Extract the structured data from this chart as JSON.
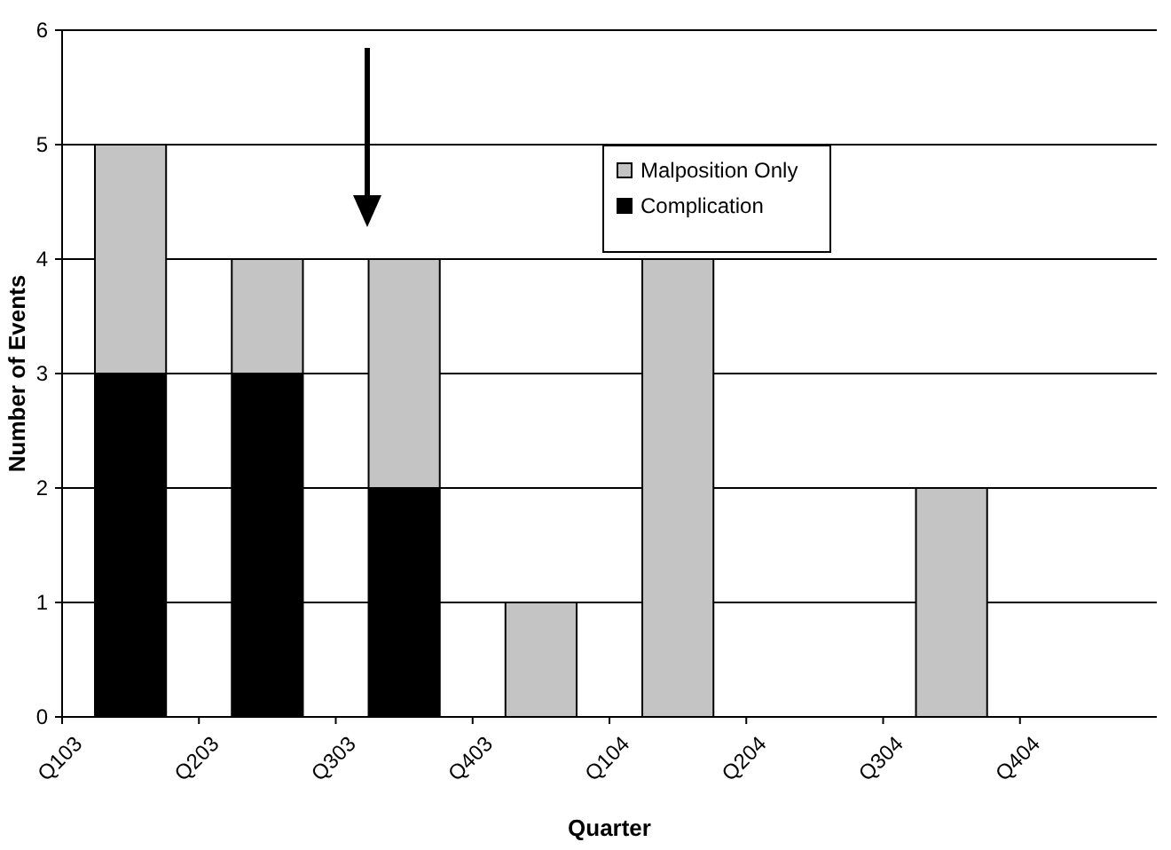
{
  "chart_data": {
    "type": "bar",
    "stacked": true,
    "xlabel": "Quarter",
    "ylabel": "Number of Events",
    "categories": [
      "Q103",
      "Q203",
      "Q303",
      "Q403",
      "Q104",
      "Q204",
      "Q304",
      "Q404"
    ],
    "series": [
      {
        "name": "Complication",
        "color": "#000000",
        "values": [
          3,
          3,
          2,
          0,
          0,
          0,
          0,
          0
        ]
      },
      {
        "name": "Malposition Only",
        "color": "#c4c4c4",
        "values": [
          2,
          1,
          2,
          1,
          4,
          0,
          2,
          0
        ]
      }
    ],
    "ylim": [
      0,
      6
    ],
    "yticks": [
      0,
      1,
      2,
      3,
      4,
      5,
      6
    ],
    "grid": "y",
    "legend": "top right"
  }
}
